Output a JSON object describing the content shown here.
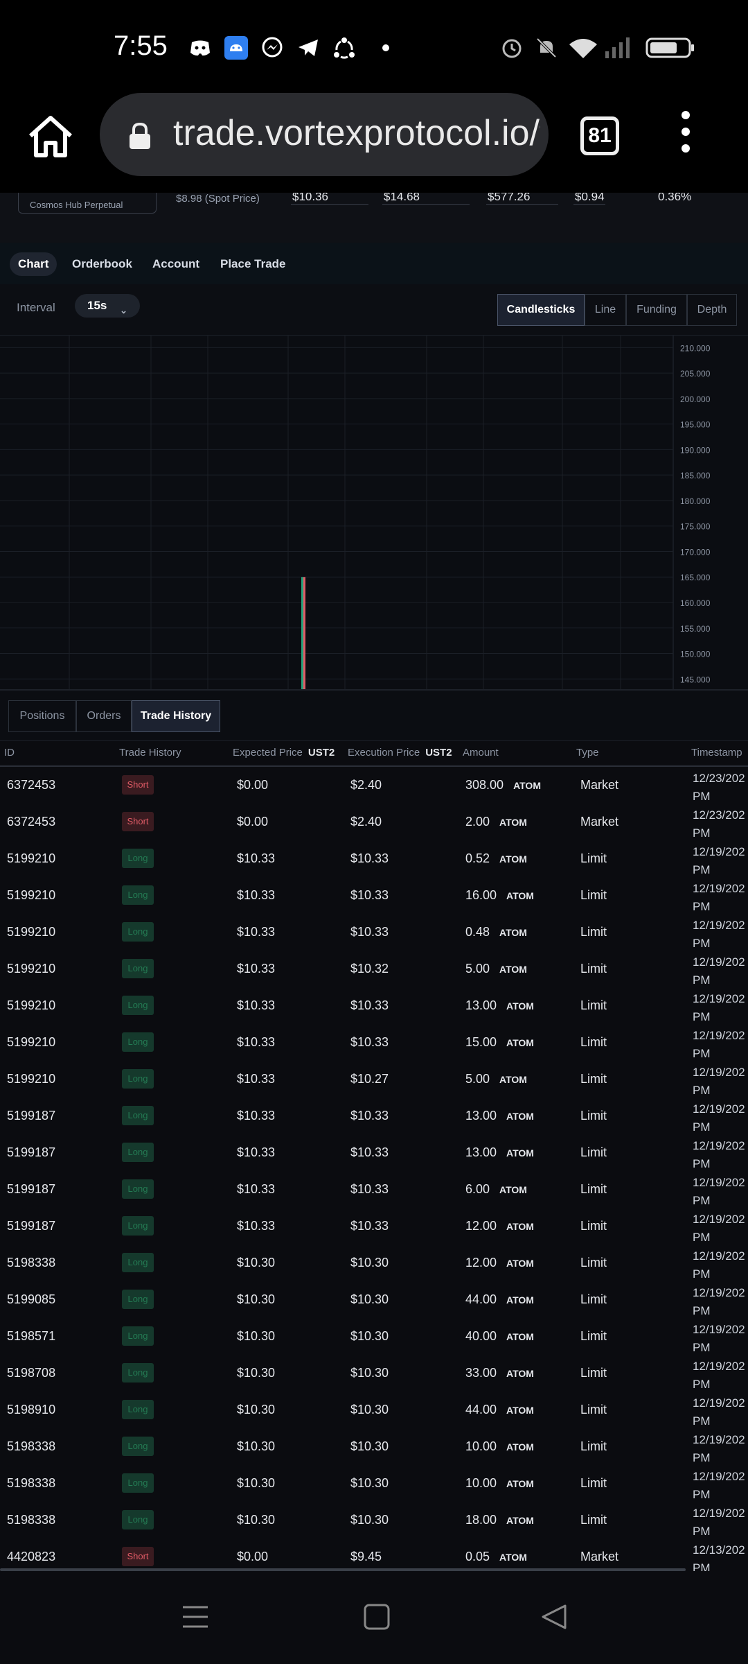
{
  "status_bar": {
    "time": "7:55",
    "icons": [
      "discord-icon",
      "android-icon",
      "messenger-icon",
      "telegram-icon",
      "share-icon",
      "dot-icon",
      "alarm-icon",
      "mute-icon",
      "wifi-icon",
      "signal-icon",
      "battery-icon"
    ]
  },
  "browser": {
    "url": "trade.vortexprotocol.io/t",
    "tab_count": "81"
  },
  "market": {
    "name": "Cosmos Hub Perpetual",
    "spot_price": "$8.98 (Spot Price)",
    "values": [
      "$10.36",
      "$14.68",
      "$577.26",
      "$0.94",
      "0.36%"
    ]
  },
  "view_tabs": [
    "Chart",
    "Orderbook",
    "Account",
    "Place Trade"
  ],
  "toolbar": {
    "interval_label": "Interval",
    "interval_value": "15s",
    "chart_types": [
      "Candlesticks",
      "Line",
      "Funding",
      "Depth"
    ]
  },
  "chart_data": {
    "type": "candlestick",
    "y_ticks": [
      "210.000",
      "205.000",
      "200.000",
      "195.000",
      "190.000",
      "185.000",
      "180.000",
      "175.000",
      "170.000",
      "165.000",
      "160.000",
      "155.000",
      "150.000",
      "145.000"
    ],
    "ylim": [
      143,
      211
    ],
    "candle": {
      "high": 165,
      "low": 143
    },
    "colors": {
      "up": "#26a17a",
      "down": "#e05b66"
    }
  },
  "sub_tabs": [
    "Positions",
    "Orders",
    "Trade History"
  ],
  "table": {
    "headers": {
      "id": "ID",
      "trade_history": "Trade History",
      "expected_price": "Expected Price",
      "expected_unit": "UST2",
      "execution_price": "Execution Price",
      "execution_unit": "UST2",
      "amount": "Amount",
      "type": "Type",
      "timestamp": "Timestamp"
    },
    "rows": [
      {
        "id": "6372453",
        "side": "Short",
        "expected": "$0.00",
        "exec": "$2.40",
        "amount": "308.00",
        "unit": "ATOM",
        "type": "Market",
        "ts1": "12/23/202",
        "ts2": "PM"
      },
      {
        "id": "6372453",
        "side": "Short",
        "expected": "$0.00",
        "exec": "$2.40",
        "amount": "2.00",
        "unit": "ATOM",
        "type": "Market",
        "ts1": "12/23/202",
        "ts2": "PM"
      },
      {
        "id": "5199210",
        "side": "Long",
        "expected": "$10.33",
        "exec": "$10.33",
        "amount": "0.52",
        "unit": "ATOM",
        "type": "Limit",
        "ts1": "12/19/202",
        "ts2": "PM"
      },
      {
        "id": "5199210",
        "side": "Long",
        "expected": "$10.33",
        "exec": "$10.33",
        "amount": "16.00",
        "unit": "ATOM",
        "type": "Limit",
        "ts1": "12/19/202",
        "ts2": "PM"
      },
      {
        "id": "5199210",
        "side": "Long",
        "expected": "$10.33",
        "exec": "$10.33",
        "amount": "0.48",
        "unit": "ATOM",
        "type": "Limit",
        "ts1": "12/19/202",
        "ts2": "PM"
      },
      {
        "id": "5199210",
        "side": "Long",
        "expected": "$10.33",
        "exec": "$10.32",
        "amount": "5.00",
        "unit": "ATOM",
        "type": "Limit",
        "ts1": "12/19/202",
        "ts2": "PM"
      },
      {
        "id": "5199210",
        "side": "Long",
        "expected": "$10.33",
        "exec": "$10.33",
        "amount": "13.00",
        "unit": "ATOM",
        "type": "Limit",
        "ts1": "12/19/202",
        "ts2": "PM"
      },
      {
        "id": "5199210",
        "side": "Long",
        "expected": "$10.33",
        "exec": "$10.33",
        "amount": "15.00",
        "unit": "ATOM",
        "type": "Limit",
        "ts1": "12/19/202",
        "ts2": "PM"
      },
      {
        "id": "5199210",
        "side": "Long",
        "expected": "$10.33",
        "exec": "$10.27",
        "amount": "5.00",
        "unit": "ATOM",
        "type": "Limit",
        "ts1": "12/19/202",
        "ts2": "PM"
      },
      {
        "id": "5199187",
        "side": "Long",
        "expected": "$10.33",
        "exec": "$10.33",
        "amount": "13.00",
        "unit": "ATOM",
        "type": "Limit",
        "ts1": "12/19/202",
        "ts2": "PM"
      },
      {
        "id": "5199187",
        "side": "Long",
        "expected": "$10.33",
        "exec": "$10.33",
        "amount": "13.00",
        "unit": "ATOM",
        "type": "Limit",
        "ts1": "12/19/202",
        "ts2": "PM"
      },
      {
        "id": "5199187",
        "side": "Long",
        "expected": "$10.33",
        "exec": "$10.33",
        "amount": "6.00",
        "unit": "ATOM",
        "type": "Limit",
        "ts1": "12/19/202",
        "ts2": "PM"
      },
      {
        "id": "5199187",
        "side": "Long",
        "expected": "$10.33",
        "exec": "$10.33",
        "amount": "12.00",
        "unit": "ATOM",
        "type": "Limit",
        "ts1": "12/19/202",
        "ts2": "PM"
      },
      {
        "id": "5198338",
        "side": "Long",
        "expected": "$10.30",
        "exec": "$10.30",
        "amount": "12.00",
        "unit": "ATOM",
        "type": "Limit",
        "ts1": "12/19/202",
        "ts2": "PM"
      },
      {
        "id": "5199085",
        "side": "Long",
        "expected": "$10.30",
        "exec": "$10.30",
        "amount": "44.00",
        "unit": "ATOM",
        "type": "Limit",
        "ts1": "12/19/202",
        "ts2": "PM"
      },
      {
        "id": "5198571",
        "side": "Long",
        "expected": "$10.30",
        "exec": "$10.30",
        "amount": "40.00",
        "unit": "ATOM",
        "type": "Limit",
        "ts1": "12/19/202",
        "ts2": "PM"
      },
      {
        "id": "5198708",
        "side": "Long",
        "expected": "$10.30",
        "exec": "$10.30",
        "amount": "33.00",
        "unit": "ATOM",
        "type": "Limit",
        "ts1": "12/19/202",
        "ts2": "PM"
      },
      {
        "id": "5198910",
        "side": "Long",
        "expected": "$10.30",
        "exec": "$10.30",
        "amount": "44.00",
        "unit": "ATOM",
        "type": "Limit",
        "ts1": "12/19/202",
        "ts2": "PM"
      },
      {
        "id": "5198338",
        "side": "Long",
        "expected": "$10.30",
        "exec": "$10.30",
        "amount": "10.00",
        "unit": "ATOM",
        "type": "Limit",
        "ts1": "12/19/202",
        "ts2": "PM"
      },
      {
        "id": "5198338",
        "side": "Long",
        "expected": "$10.30",
        "exec": "$10.30",
        "amount": "10.00",
        "unit": "ATOM",
        "type": "Limit",
        "ts1": "12/19/202",
        "ts2": "PM"
      },
      {
        "id": "5198338",
        "side": "Long",
        "expected": "$10.30",
        "exec": "$10.30",
        "amount": "18.00",
        "unit": "ATOM",
        "type": "Limit",
        "ts1": "12/19/202",
        "ts2": "PM"
      },
      {
        "id": "4420823",
        "side": "Short",
        "expected": "$0.00",
        "exec": "$9.45",
        "amount": "0.05",
        "unit": "ATOM",
        "type": "Market",
        "ts1": "12/13/202",
        "ts2": "PM"
      }
    ]
  },
  "nav_bar": [
    "recents-icon",
    "home-square-icon",
    "back-triangle-icon"
  ]
}
